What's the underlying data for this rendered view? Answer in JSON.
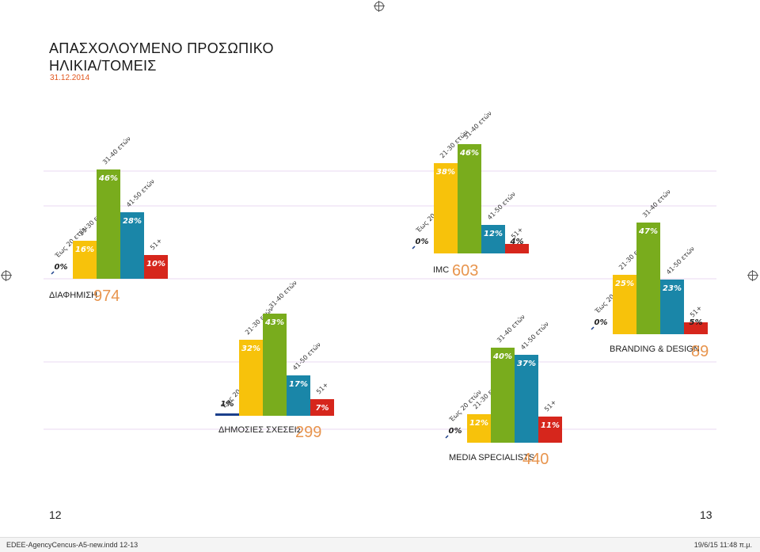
{
  "page": {
    "title_line1": "ΑΠΑΣΧΟΛΟΥΜΕΝΟ ΠΡΟΣΩΠΙΚΟ",
    "title_line2": "ΗΛΙΚΙΑ/ΤΟΜΕΙΣ",
    "date": "31.12.2014",
    "page_left": "12",
    "page_right": "13",
    "footer_left": "EDEE-AgencyCencus-A5-new.indd   12-13",
    "footer_right": "19/6/15   11:48 π.μ."
  },
  "colors": {
    "age_0_20": "#1b3f8b",
    "age_21_30": "#f7c20b",
    "age_31_40": "#79ac1d",
    "age_41_50": "#1a86a8",
    "age_51_plus": "#d6261c",
    "count_text": "#e8954e",
    "gridline": "#e8d8f0"
  },
  "chart_data": [
    {
      "type": "bar",
      "title": "ΔΙΑΦΗΜΙΣΗ",
      "total": "974",
      "categories": [
        "Έως 20 ετών",
        "21-30 ετών",
        "31-40 ετών",
        "41-50 ετών",
        "51+"
      ],
      "values": [
        0,
        16,
        46,
        28,
        10
      ],
      "labels": [
        "0%",
        "16%",
        "46%",
        "28%",
        "10%"
      ]
    },
    {
      "type": "bar",
      "title": "ΔΗΜΟΣΙΕΣ ΣΧΕΣΕΙΣ",
      "total": "299",
      "categories": [
        "Έως 20 ετών",
        "21-30 ετών",
        "31-40 ετών",
        "41-50 ετών",
        "51+"
      ],
      "values": [
        1,
        32,
        43,
        17,
        7
      ],
      "labels": [
        "1%",
        "32%",
        "43%",
        "17%",
        "7%"
      ]
    },
    {
      "type": "bar",
      "title": "IMC",
      "total": "603",
      "categories": [
        "Έως 20 ετών",
        "21-30 ετών",
        "31-40 ετών",
        "41-50 ετών",
        "51+"
      ],
      "values": [
        0,
        38,
        46,
        12,
        4
      ],
      "labels": [
        "0%",
        "38%",
        "46%",
        "12%",
        "4%"
      ]
    },
    {
      "type": "bar",
      "title": "MEDIA SPECIALISTS",
      "total": "440",
      "categories": [
        "Έως 20 ετών",
        "21-30 ετών",
        "31-40 ετών",
        "41-50 ετών",
        "51+"
      ],
      "values": [
        0,
        12,
        40,
        37,
        11
      ],
      "labels": [
        "0%",
        "12%",
        "40%",
        "37%",
        "11%"
      ]
    },
    {
      "type": "bar",
      "title": "BRANDING & DESIGN",
      "total": "89",
      "categories": [
        "Έως 20 ετών",
        "21-30 ετών",
        "31-40 ετών",
        "41-50 ετών",
        "51+"
      ],
      "values": [
        0,
        25,
        47,
        23,
        5
      ],
      "labels": [
        "0%",
        "25%",
        "47%",
        "23%",
        "5%"
      ]
    }
  ]
}
